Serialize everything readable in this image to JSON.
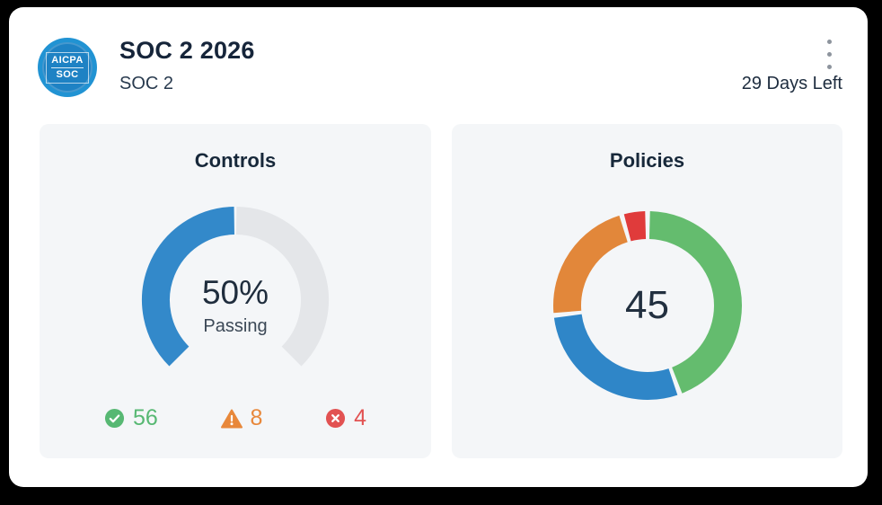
{
  "header": {
    "title": "SOC 2 2026",
    "subtitle": "SOC 2",
    "days_left": "29 Days Left",
    "menu_icon": "kebab-vertical-icon",
    "logo": {
      "line1": "AICPA",
      "line2": "SOC"
    }
  },
  "colors": {
    "card_background": "#ffffff",
    "panel_background": "#f4f6f8",
    "heading_text": "#16253a",
    "logo_blue": "#1e82c4"
  },
  "chart_data": [
    {
      "type": "gauge",
      "title": "Controls",
      "percent": 50,
      "center_label": "50%",
      "center_sublabel": "Passing",
      "arc_span_degrees": 270,
      "track_color": "#e4e6e9",
      "value_color": "#3389ca",
      "stats": [
        {
          "icon": "check-circle-icon",
          "label": "passing",
          "value": 56,
          "color": "#57b873"
        },
        {
          "icon": "warning-triangle-icon",
          "label": "warning",
          "value": 8,
          "color": "#e8883b"
        },
        {
          "icon": "x-circle-icon",
          "label": "failing",
          "value": 4,
          "color": "#e25252"
        }
      ]
    },
    {
      "type": "donut",
      "title": "Policies",
      "center_value": 45,
      "start_angle_deg": 0,
      "gap_deg": 3,
      "segments": [
        {
          "name": "ok",
          "value": 20,
          "color": "#64bc6e"
        },
        {
          "name": "in-progress",
          "value": 13,
          "color": "#2f86c8"
        },
        {
          "name": "needs-attention",
          "value": 10,
          "color": "#e2873a"
        },
        {
          "name": "overdue",
          "value": 2,
          "color": "#e03b3b"
        }
      ]
    }
  ]
}
